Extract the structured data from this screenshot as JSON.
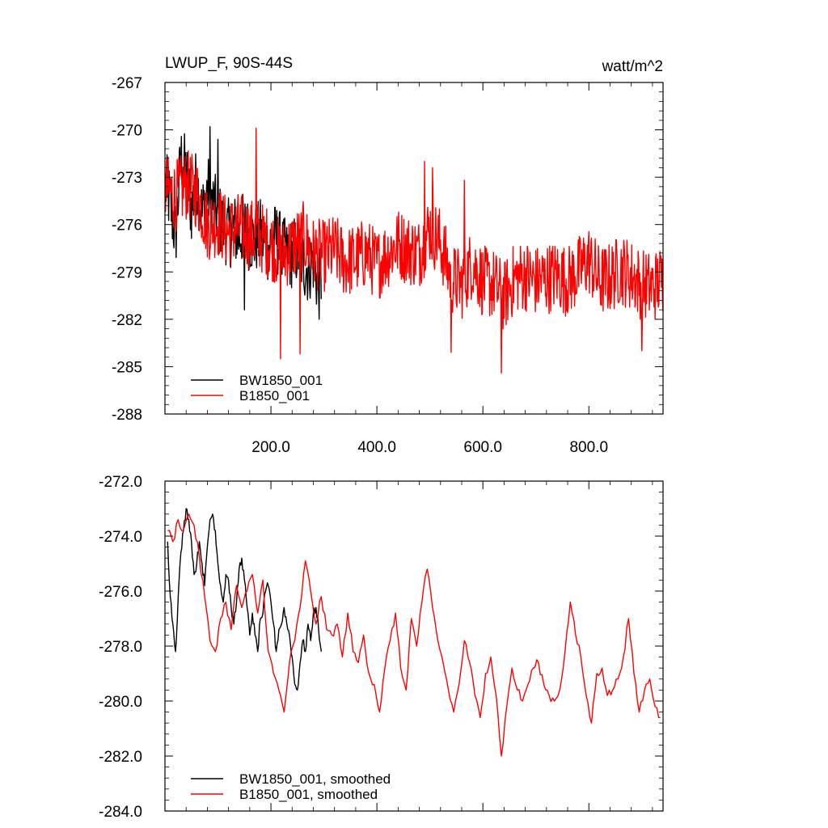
{
  "chart_data": [
    {
      "type": "line",
      "title": "LWUP_F, 90S-44S",
      "units": "watt/m^2",
      "xlim": [
        0,
        940
      ],
      "ylim": [
        -288,
        -267
      ],
      "yticks": [
        -267,
        -270,
        -273,
        -276,
        -279,
        -282,
        -285,
        -288
      ],
      "ytick_labels": [
        "-267",
        "-270",
        "-273",
        "-276",
        "-279",
        "-282",
        "-285",
        "-288"
      ],
      "xticks": [
        200,
        400,
        600,
        800
      ],
      "xtick_labels": [
        "200.0",
        "400.0",
        "600.0",
        "800.0"
      ],
      "legend_position": "bottom-left",
      "series": [
        {
          "name": "BW1850_001",
          "color": "#000000",
          "x_range": [
            1,
            295
          ],
          "points": [
            [
              1,
              -273.5
            ],
            [
              10,
              -274.6
            ],
            [
              20,
              -276.8
            ],
            [
              30,
              -271.8
            ],
            [
              40,
              -272.7
            ],
            [
              50,
              -275.0
            ],
            [
              60,
              -273.2
            ],
            [
              70,
              -275.4
            ],
            [
              80,
              -273.8
            ],
            [
              90,
              -274.6
            ],
            [
              100,
              -275.6
            ],
            [
              110,
              -276.0
            ],
            [
              120,
              -276.6
            ],
            [
              130,
              -276.2
            ],
            [
              140,
              -276.8
            ],
            [
              150,
              -276.0
            ],
            [
              160,
              -276.8
            ],
            [
              170,
              -277.0
            ],
            [
              180,
              -276.6
            ],
            [
              190,
              -277.4
            ],
            [
              200,
              -277.2
            ],
            [
              210,
              -276.8
            ],
            [
              220,
              -277.6
            ],
            [
              230,
              -278.0
            ],
            [
              240,
              -277.8
            ],
            [
              250,
              -277.6
            ],
            [
              260,
              -278.4
            ],
            [
              270,
              -278.8
            ],
            [
              280,
              -278.2
            ],
            [
              290,
              -280.0
            ],
            [
              295,
              -279.5
            ]
          ],
          "peaks": [
            [
              85,
              -269.8
            ],
            [
              100,
              -270.6
            ]
          ],
          "troughs": [
            [
              296,
              -282.7
            ],
            [
              150,
              -281.4
            ]
          ]
        },
        {
          "name": "B1850_001",
          "color": "#ff0000",
          "x_range": [
            1,
            940
          ],
          "points": [
            [
              1,
              -273.8
            ],
            [
              20,
              -274.2
            ],
            [
              40,
              -273.5
            ],
            [
              60,
              -274.0
            ],
            [
              80,
              -276.0
            ],
            [
              100,
              -275.8
            ],
            [
              120,
              -276.5
            ],
            [
              140,
              -276.2
            ],
            [
              160,
              -276.6
            ],
            [
              180,
              -276.8
            ],
            [
              200,
              -277.2
            ],
            [
              220,
              -278.0
            ],
            [
              240,
              -277.4
            ],
            [
              260,
              -276.8
            ],
            [
              280,
              -277.8
            ],
            [
              300,
              -278.0
            ],
            [
              320,
              -277.6
            ],
            [
              340,
              -278.4
            ],
            [
              360,
              -278.2
            ],
            [
              380,
              -277.8
            ],
            [
              400,
              -278.6
            ],
            [
              420,
              -277.8
            ],
            [
              440,
              -277.2
            ],
            [
              460,
              -277.6
            ],
            [
              480,
              -277.8
            ],
            [
              500,
              -276.2
            ],
            [
              520,
              -277.2
            ],
            [
              540,
              -279.4
            ],
            [
              560,
              -279.8
            ],
            [
              580,
              -278.4
            ],
            [
              600,
              -279.6
            ],
            [
              620,
              -279.8
            ],
            [
              640,
              -280.6
            ],
            [
              660,
              -279.4
            ],
            [
              680,
              -279.2
            ],
            [
              700,
              -279.6
            ],
            [
              720,
              -279.4
            ],
            [
              740,
              -279.2
            ],
            [
              760,
              -279.6
            ],
            [
              780,
              -279.0
            ],
            [
              800,
              -278.2
            ],
            [
              820,
              -279.6
            ],
            [
              840,
              -279.4
            ],
            [
              860,
              -278.8
            ],
            [
              880,
              -279.2
            ],
            [
              900,
              -279.8
            ],
            [
              920,
              -280.0
            ],
            [
              940,
              -279.4
            ]
          ],
          "peaks": [
            [
              172,
              -269.9
            ],
            [
              490,
              -272.0
            ],
            [
              505,
              -272.4
            ],
            [
              565,
              -273.2
            ]
          ],
          "troughs": [
            [
              218,
              -284.5
            ],
            [
              255,
              -284.2
            ],
            [
              540,
              -284.1
            ],
            [
              635,
              -285.4
            ],
            [
              900,
              -284.0
            ]
          ]
        }
      ]
    },
    {
      "type": "line",
      "title": "",
      "units": "",
      "xlim": [
        0,
        940
      ],
      "ylim": [
        -284,
        -272
      ],
      "yticks": [
        -272,
        -274,
        -276,
        -278,
        -280,
        -282,
        -284
      ],
      "ytick_labels": [
        "-272.0",
        "-274.0",
        "-276.0",
        "-278.0",
        "-280.0",
        "-282.0",
        "-284.0"
      ],
      "xticks": [
        200,
        400,
        600,
        800
      ],
      "xtick_labels": [],
      "legend_position": "bottom-left",
      "series": [
        {
          "name": "BW1850_001, smoothed",
          "color": "#000000",
          "x": [
            5,
            10,
            15,
            20,
            25,
            30,
            35,
            40,
            45,
            50,
            55,
            60,
            65,
            70,
            75,
            80,
            85,
            90,
            95,
            100,
            105,
            110,
            115,
            120,
            125,
            130,
            135,
            140,
            145,
            150,
            155,
            160,
            165,
            170,
            175,
            180,
            185,
            190,
            195,
            200,
            205,
            210,
            215,
            220,
            225,
            230,
            235,
            240,
            245,
            250,
            255,
            260,
            265,
            270,
            275,
            280,
            285,
            290,
            295
          ],
          "values": [
            -274.2,
            -276.2,
            -277.2,
            -278.2,
            -276.2,
            -274.6,
            -273.8,
            -273.0,
            -273.4,
            -274.2,
            -275.4,
            -275.0,
            -274.2,
            -275.0,
            -275.8,
            -274.4,
            -273.4,
            -273.2,
            -273.8,
            -275.0,
            -275.8,
            -276.4,
            -275.4,
            -275.6,
            -276.6,
            -277.2,
            -276.4,
            -275.2,
            -274.8,
            -275.6,
            -276.6,
            -277.6,
            -276.8,
            -277.6,
            -278.2,
            -277.0,
            -276.8,
            -276.0,
            -275.8,
            -276.4,
            -277.2,
            -278.2,
            -277.4,
            -277.2,
            -276.6,
            -277.2,
            -277.6,
            -278.4,
            -279.4,
            -279.6,
            -278.6,
            -277.8,
            -278.2,
            -277.2,
            -277.8,
            -276.8,
            -276.6,
            -277.4,
            -278.2
          ]
        },
        {
          "name": "B1850_001, smoothed",
          "color": "#ff0000",
          "x": [
            5,
            15,
            25,
            35,
            45,
            55,
            65,
            75,
            85,
            95,
            105,
            115,
            125,
            135,
            145,
            155,
            165,
            175,
            185,
            195,
            205,
            215,
            225,
            235,
            245,
            255,
            265,
            275,
            285,
            295,
            305,
            315,
            325,
            335,
            345,
            355,
            365,
            375,
            385,
            395,
            405,
            415,
            425,
            435,
            445,
            455,
            465,
            475,
            485,
            495,
            505,
            515,
            525,
            535,
            545,
            555,
            565,
            575,
            585,
            595,
            605,
            615,
            625,
            635,
            645,
            655,
            665,
            675,
            685,
            695,
            705,
            715,
            725,
            735,
            745,
            755,
            765,
            775,
            785,
            795,
            805,
            815,
            825,
            835,
            845,
            855,
            865,
            875,
            885,
            895,
            905,
            915,
            925,
            935
          ],
          "values": [
            -273.8,
            -274.2,
            -273.4,
            -273.8,
            -273.2,
            -273.6,
            -274.8,
            -276.2,
            -277.8,
            -278.2,
            -277.0,
            -276.4,
            -277.4,
            -275.8,
            -276.6,
            -276.0,
            -275.4,
            -276.8,
            -275.6,
            -278.2,
            -279.0,
            -279.6,
            -280.4,
            -278.6,
            -277.8,
            -276.6,
            -274.9,
            -276.0,
            -277.2,
            -276.2,
            -277.4,
            -277.6,
            -277.2,
            -278.4,
            -276.8,
            -278.2,
            -278.6,
            -277.6,
            -279.0,
            -279.4,
            -280.4,
            -278.8,
            -277.8,
            -276.8,
            -278.8,
            -279.6,
            -277.0,
            -278.0,
            -276.4,
            -275.2,
            -276.6,
            -277.8,
            -278.6,
            -279.6,
            -280.4,
            -279.4,
            -277.8,
            -278.6,
            -279.8,
            -280.6,
            -279.0,
            -278.4,
            -279.8,
            -282.0,
            -280.2,
            -278.8,
            -279.6,
            -280.0,
            -279.4,
            -278.8,
            -278.6,
            -279.4,
            -279.8,
            -280.0,
            -279.6,
            -278.2,
            -276.4,
            -277.6,
            -278.4,
            -279.8,
            -280.8,
            -279.0,
            -278.8,
            -279.8,
            -279.6,
            -279.2,
            -278.4,
            -277.0,
            -279.0,
            -280.4,
            -279.6,
            -279.2,
            -280.2,
            -280.6
          ]
        }
      ]
    }
  ]
}
